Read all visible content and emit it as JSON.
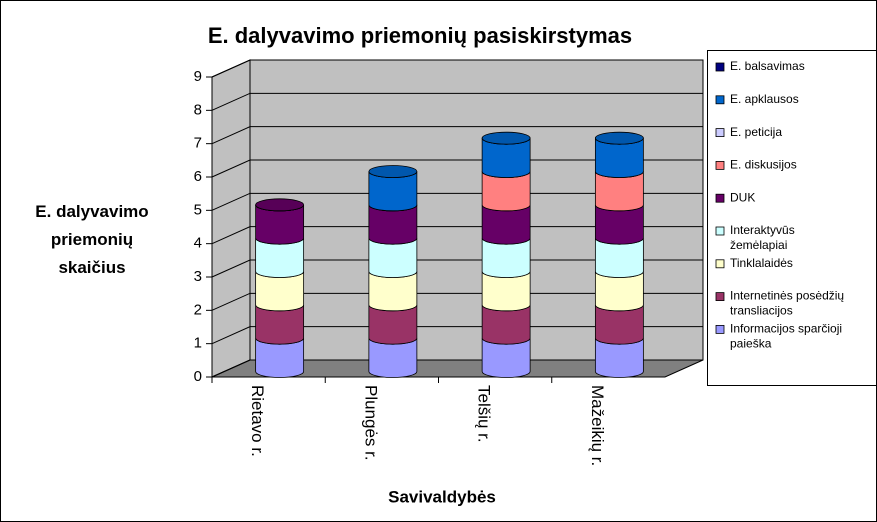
{
  "chart_data": {
    "type": "bar3d_stacked",
    "title": "E. dalyvavimo priemonių pasiskirstymas",
    "x_label": "Savivaldybės",
    "y_label": "E. dalyvavimo priemonių skaičius",
    "categories": [
      "Rietavo r.",
      "Plungės r.",
      "Telšių r.",
      "Mažeikių r."
    ],
    "series": [
      {
        "name": "Informacijos sparčioji paieška",
        "color": "#9999ff",
        "values": [
          1,
          1,
          1,
          1
        ]
      },
      {
        "name": "Internetinės posėdžių transliacijos",
        "color": "#993366",
        "values": [
          1,
          1,
          1,
          1
        ]
      },
      {
        "name": "Tinklalaidės",
        "color": "#ffffcc",
        "values": [
          1,
          1,
          1,
          1
        ]
      },
      {
        "name": "Interaktyvūs žemėlapiai",
        "color": "#ccffff",
        "values": [
          1,
          1,
          1,
          1
        ]
      },
      {
        "name": "DUK",
        "color": "#660066",
        "values": [
          1,
          1,
          1,
          1
        ]
      },
      {
        "name": "E. diskusijos",
        "color": "#ff8080",
        "values": [
          0,
          0,
          1,
          1
        ]
      },
      {
        "name": "E. peticija",
        "color": "#ccccff",
        "values": [
          0,
          0,
          0,
          0
        ]
      },
      {
        "name": "E. apklausos",
        "color": "#0066cc",
        "values": [
          0,
          1,
          1,
          1
        ]
      },
      {
        "name": "E. balsavimas",
        "color": "#000080",
        "values": [
          0,
          0,
          0,
          0
        ]
      }
    ],
    "ylim": [
      0,
      9
    ],
    "yticks": [
      0,
      1,
      2,
      3,
      4,
      5,
      6,
      7,
      8,
      9
    ],
    "grid": true,
    "legend": "right"
  }
}
